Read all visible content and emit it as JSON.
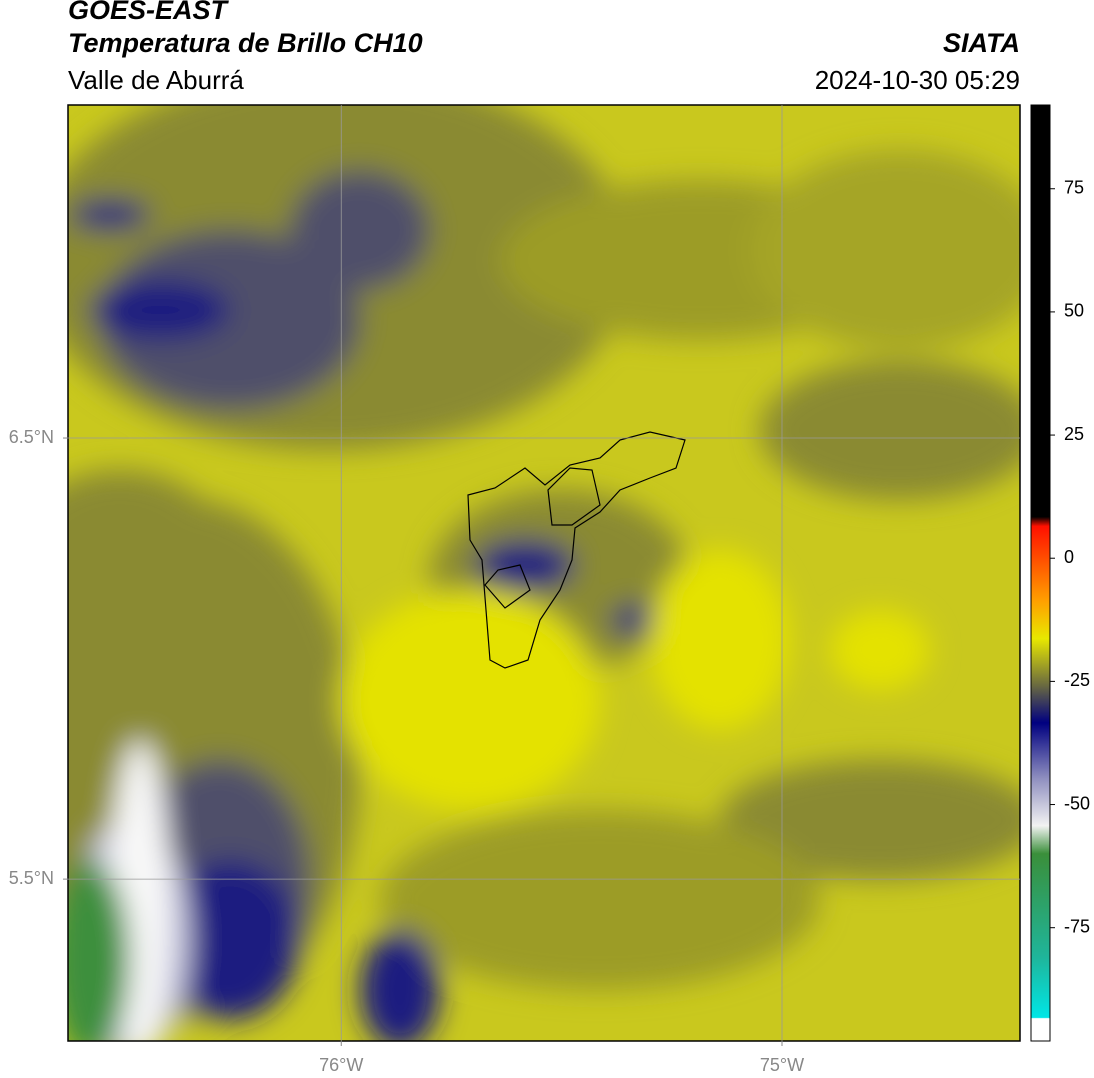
{
  "header": {
    "title": "GOES-EAST",
    "subtitle": "Temperatura de Brillo CH10",
    "region": "Valle de Aburrá",
    "source": "SIATA",
    "datetime": "2024-10-30 05:29"
  },
  "map": {
    "xlim": [
      -76.62,
      -74.46
    ],
    "ylim": [
      5.133,
      7.255
    ],
    "xticks": [
      {
        "value": -76,
        "label": "76°W"
      },
      {
        "value": -75,
        "label": "75°W"
      }
    ],
    "yticks": [
      {
        "value": 6.5,
        "label": "6.5°N"
      },
      {
        "value": 5.5,
        "label": "5.5°N"
      }
    ],
    "grid": true
  },
  "colorbar": {
    "lim": [
      -98,
      92
    ],
    "ticks": [
      75,
      50,
      25,
      0,
      -25,
      -50,
      -75
    ]
  }
}
